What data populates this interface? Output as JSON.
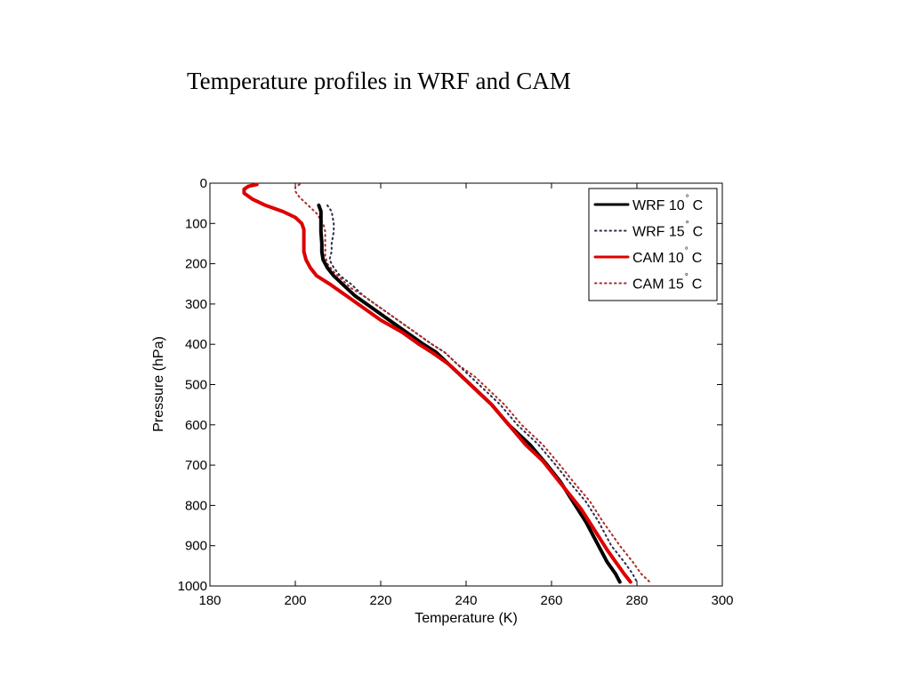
{
  "slide": {
    "title": "Temperature profiles in WRF and CAM"
  },
  "chart_data": {
    "type": "line",
    "title": "",
    "xlabel": "Temperature (K)",
    "ylabel": "Pressure (hPa)",
    "xlim": [
      180,
      300
    ],
    "ylim": [
      0,
      1000
    ],
    "y_reversed": true,
    "xticks": [
      180,
      200,
      220,
      240,
      260,
      280,
      300
    ],
    "yticks": [
      0,
      100,
      200,
      300,
      400,
      500,
      600,
      700,
      800,
      900,
      1000
    ],
    "legend_position": "top-right",
    "grid": false,
    "series": [
      {
        "name": "WRF 10",
        "name_suffix": "C",
        "color": "#000000",
        "style": "solid",
        "points": [
          [
            205.5,
            55
          ],
          [
            206,
            70
          ],
          [
            206,
            100
          ],
          [
            206,
            120
          ],
          [
            206.2,
            150
          ],
          [
            206.2,
            170
          ],
          [
            206.5,
            190
          ],
          [
            207.5,
            210
          ],
          [
            209,
            230
          ],
          [
            211,
            250
          ],
          [
            214,
            280
          ],
          [
            218,
            310
          ],
          [
            222,
            340
          ],
          [
            226,
            370
          ],
          [
            230,
            400
          ],
          [
            233,
            420
          ],
          [
            236,
            450
          ],
          [
            239,
            480
          ],
          [
            242,
            510
          ],
          [
            246,
            550
          ],
          [
            250,
            600
          ],
          [
            255,
            650
          ],
          [
            259,
            700
          ],
          [
            262,
            740
          ],
          [
            265,
            790
          ],
          [
            268,
            840
          ],
          [
            271,
            900
          ],
          [
            273,
            940
          ],
          [
            275,
            970
          ],
          [
            276,
            990
          ]
        ]
      },
      {
        "name": "WRF 15",
        "name_suffix": "C",
        "color": "#2b2b4a",
        "style": "dotted",
        "points": [
          [
            207.5,
            55
          ],
          [
            208.5,
            70
          ],
          [
            209,
            100
          ],
          [
            209,
            120
          ],
          [
            208.5,
            150
          ],
          [
            208.5,
            170
          ],
          [
            208,
            190
          ],
          [
            209,
            210
          ],
          [
            210.5,
            230
          ],
          [
            213,
            250
          ],
          [
            216,
            280
          ],
          [
            220,
            310
          ],
          [
            224,
            340
          ],
          [
            228,
            370
          ],
          [
            232,
            400
          ],
          [
            235,
            420
          ],
          [
            238,
            450
          ],
          [
            241,
            480
          ],
          [
            244,
            510
          ],
          [
            248,
            550
          ],
          [
            252,
            600
          ],
          [
            257,
            650
          ],
          [
            261,
            700
          ],
          [
            264,
            740
          ],
          [
            268,
            790
          ],
          [
            271,
            840
          ],
          [
            274,
            900
          ],
          [
            277,
            940
          ],
          [
            279,
            970
          ],
          [
            280,
            990
          ]
        ]
      },
      {
        "name": "CAM 10",
        "name_suffix": "C",
        "color": "#dd0000",
        "style": "solid",
        "points": [
          [
            191,
            3
          ],
          [
            189,
            8
          ],
          [
            188,
            15
          ],
          [
            188,
            25
          ],
          [
            190,
            40
          ],
          [
            193,
            55
          ],
          [
            197,
            70
          ],
          [
            200,
            85
          ],
          [
            201.5,
            100
          ],
          [
            202,
            115
          ],
          [
            202,
            130
          ],
          [
            202,
            150
          ],
          [
            202,
            170
          ],
          [
            202.5,
            190
          ],
          [
            203.5,
            210
          ],
          [
            205,
            230
          ],
          [
            208,
            250
          ],
          [
            212,
            280
          ],
          [
            216,
            310
          ],
          [
            220,
            340
          ],
          [
            225,
            370
          ],
          [
            229,
            400
          ],
          [
            232,
            420
          ],
          [
            236,
            450
          ],
          [
            239,
            480
          ],
          [
            242,
            510
          ],
          [
            246,
            550
          ],
          [
            250,
            600
          ],
          [
            254,
            650
          ],
          [
            258,
            690
          ],
          [
            261,
            730
          ],
          [
            264,
            770
          ],
          [
            267,
            810
          ],
          [
            270,
            860
          ],
          [
            273,
            910
          ],
          [
            275,
            940
          ],
          [
            277,
            970
          ],
          [
            278.5,
            990
          ]
        ]
      },
      {
        "name": "CAM 15",
        "name_suffix": "C",
        "color": "#aa2a2a",
        "style": "dotted",
        "points": [
          [
            201,
            3
          ],
          [
            200,
            10
          ],
          [
            200,
            20
          ],
          [
            201,
            35
          ],
          [
            203,
            55
          ],
          [
            205,
            75
          ],
          [
            206.5,
            100
          ],
          [
            207,
            120
          ],
          [
            207,
            140
          ],
          [
            207,
            160
          ],
          [
            207,
            180
          ],
          [
            207.5,
            200
          ],
          [
            209,
            220
          ],
          [
            211,
            240
          ],
          [
            213,
            260
          ],
          [
            216,
            280
          ],
          [
            220,
            310
          ],
          [
            224,
            340
          ],
          [
            228,
            370
          ],
          [
            232,
            400
          ],
          [
            235,
            420
          ],
          [
            238,
            450
          ],
          [
            242,
            480
          ],
          [
            245,
            510
          ],
          [
            249,
            550
          ],
          [
            253,
            600
          ],
          [
            258,
            650
          ],
          [
            262,
            700
          ],
          [
            265,
            740
          ],
          [
            269,
            790
          ],
          [
            272,
            840
          ],
          [
            276,
            900
          ],
          [
            279,
            940
          ],
          [
            281,
            970
          ],
          [
            283,
            990
          ]
        ]
      }
    ]
  }
}
